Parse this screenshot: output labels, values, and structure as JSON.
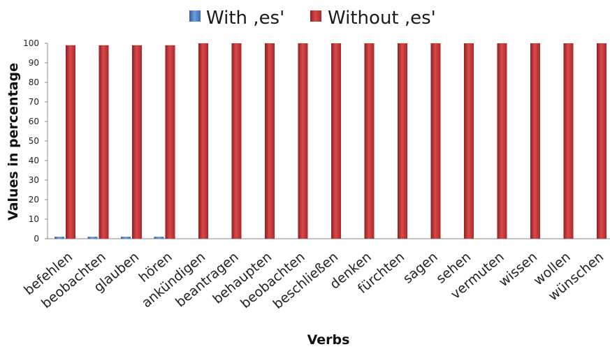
{
  "chart_data": {
    "type": "bar",
    "title": "",
    "xlabel": "Verbs",
    "ylabel": "Values in percentage",
    "ylim": [
      0,
      100
    ],
    "yticks": [
      0,
      10,
      20,
      30,
      40,
      50,
      60,
      70,
      80,
      90,
      100
    ],
    "grid": false,
    "legend_position": "top",
    "categories": [
      "befehlen",
      "beobachten",
      "glauben",
      "hören",
      "ankündigen",
      "beantragen",
      "behaupten",
      "beobachten",
      "beschließen",
      "denken",
      "fürchten",
      "sagen",
      "sehen",
      "vermuten",
      "wissen",
      "wollen",
      "wünschen"
    ],
    "series": [
      {
        "name": "With ,es'",
        "color": "#4a7fc1",
        "values": [
          1,
          1,
          1,
          1,
          0,
          0,
          0,
          0,
          0,
          0,
          0,
          0,
          0,
          0,
          0,
          0,
          0
        ]
      },
      {
        "name": "Without ,es'",
        "color": "#c0393b",
        "values": [
          99,
          99,
          99,
          99,
          100,
          100,
          100,
          100,
          100,
          100,
          100,
          100,
          100,
          100,
          100,
          100,
          100
        ]
      }
    ]
  }
}
